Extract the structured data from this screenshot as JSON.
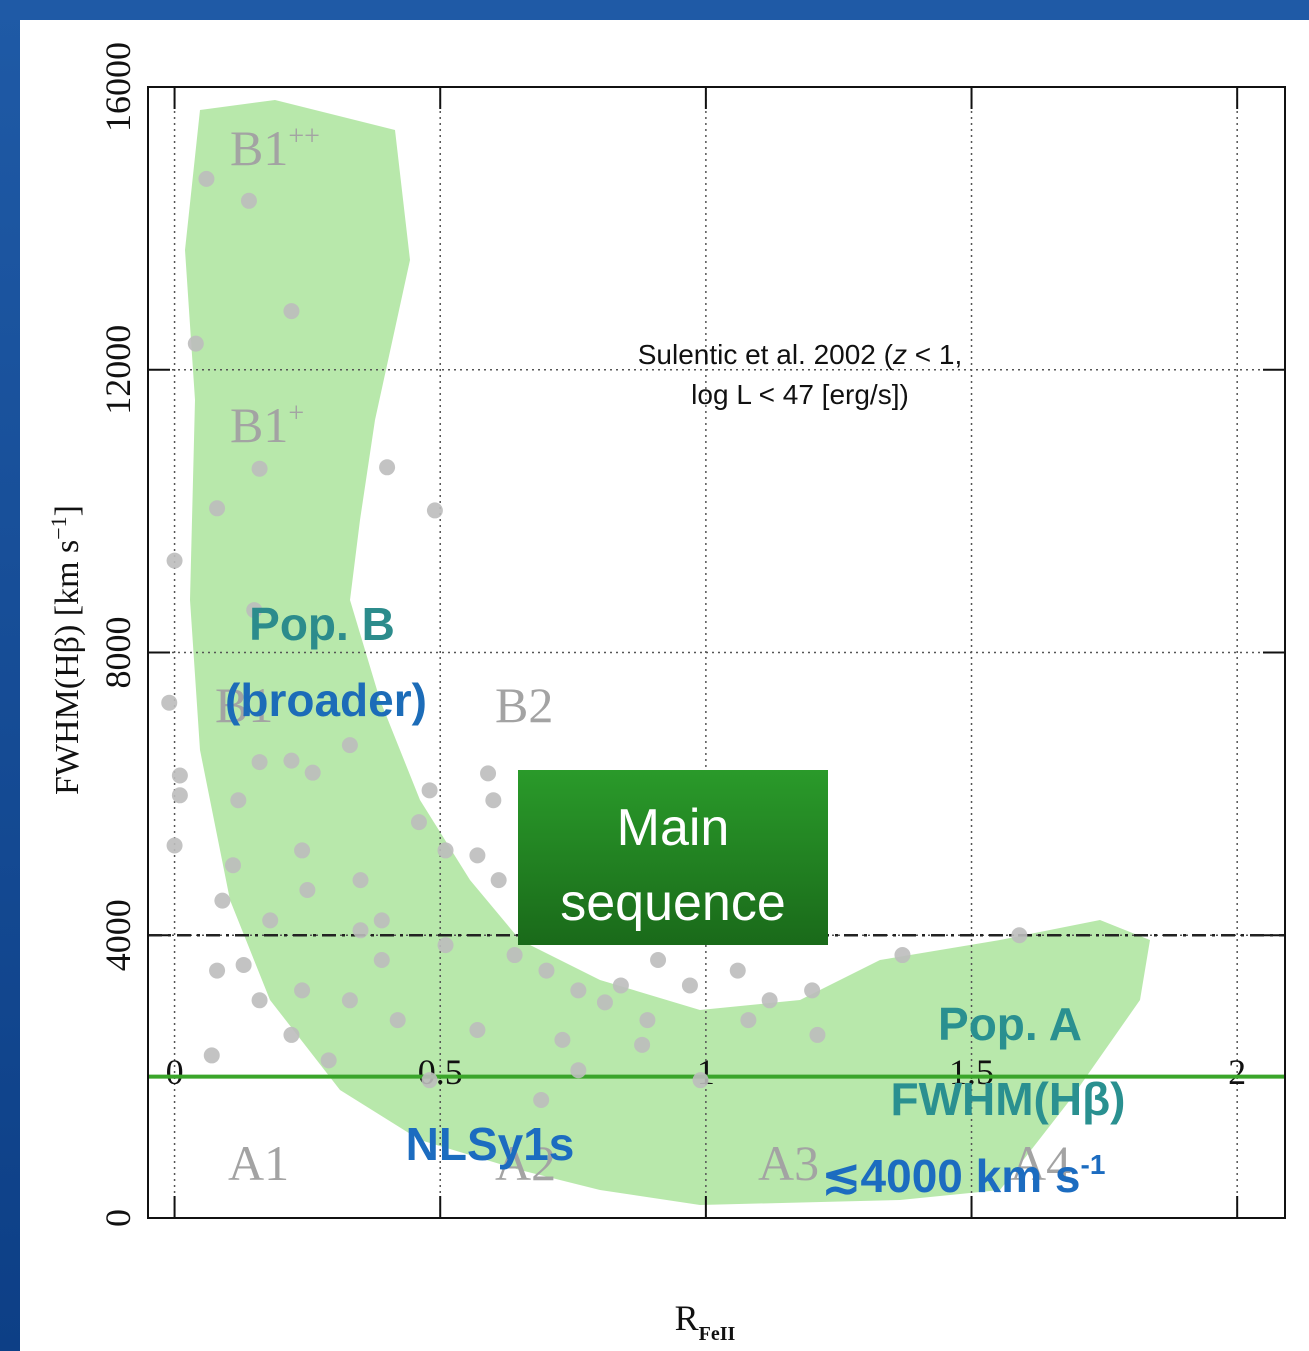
{
  "chart_data": {
    "type": "scatter",
    "x_label": {
      "text": "R",
      "sub": "FeII"
    },
    "y_label": {
      "text": "FWHM(Hβ) [km s",
      "sup": "−1",
      "end": "]"
    },
    "xlim": [
      -0.05,
      2.09
    ],
    "ylim": [
      0,
      16000
    ],
    "xticks": [
      0,
      0.5,
      1,
      1.5,
      2
    ],
    "yticks": [
      0,
      4000,
      8000,
      12000,
      16000
    ],
    "grid": true,
    "color": "#bdbdbd",
    "x": [
      0.06,
      0.04,
      0.22,
      0.16,
      0.4,
      0.08,
      0.49,
      0.0,
      0.15,
      -0.01,
      0.16,
      0.26,
      0.33,
      0.01,
      0.01,
      0.59,
      0.48,
      0.6,
      0.46,
      0.51,
      0.57,
      0.0,
      0.11,
      0.24,
      0.61,
      0.09,
      0.18,
      0.25,
      0.35,
      0.08,
      0.13,
      0.64,
      0.7,
      0.76,
      0.84,
      0.91,
      0.97,
      1.06,
      1.12,
      1.2,
      1.37,
      1.59,
      0.81,
      0.89,
      0.73,
      0.57,
      0.42,
      0.33,
      0.22,
      0.07,
      0.76,
      0.99,
      1.21,
      1.08,
      0.88,
      0.69,
      0.24,
      0.39,
      0.16,
      0.29,
      0.48,
      0.35,
      0.12,
      0.22,
      0.14,
      0.39,
      0.51
    ],
    "values": [
      14700,
      12370,
      12830,
      10600,
      10620,
      10040,
      10010,
      9300,
      8600,
      7290,
      6450,
      6300,
      6690,
      6260,
      5980,
      6290,
      6050,
      5910,
      5600,
      5200,
      5130,
      5270,
      4990,
      5200,
      4780,
      4490,
      4210,
      4640,
      4780,
      3500,
      3580,
      3720,
      3500,
      3220,
      3290,
      3650,
      3290,
      3500,
      3080,
      3220,
      3720,
      4000,
      3050,
      2800,
      2520,
      2660,
      2800,
      3080,
      2590,
      2300,
      2090,
      1950,
      2590,
      2800,
      2450,
      1670,
      3220,
      3650,
      3080,
      2230,
      1950,
      4070,
      5910,
      6470,
      14390,
      4210,
      3860
    ],
    "hlines": [
      {
        "value": 4000,
        "color": "#222222",
        "dash": "dashdot"
      },
      {
        "value": 2000,
        "color": "#3aa52a",
        "dash": "solid"
      }
    ],
    "region_labels": [
      {
        "text": "B1",
        "sup": "++"
      },
      {
        "text": "B1",
        "sup": "+"
      },
      {
        "text": "B1"
      },
      {
        "text": "B2"
      },
      {
        "text": "A1"
      },
      {
        "text": "A2"
      },
      {
        "text": "A3"
      },
      {
        "text": "A4"
      }
    ],
    "reference_note": {
      "before": "Sulentic et al. 2002 (",
      "z": "z",
      "after": " < 1,",
      "line2": "log L < 47 [erg/s])"
    },
    "callouts": {
      "pop_b": [
        "Pop. B",
        "(broader)"
      ],
      "nlsy1": "NLSy1s",
      "pop_a": [
        "Pop. A",
        "FWHM(Hβ)"
      ],
      "pop_a_limit": {
        "text": "≲4000 km s",
        "sup": "-1"
      },
      "main_sequence": [
        "Main",
        "sequence"
      ]
    }
  }
}
